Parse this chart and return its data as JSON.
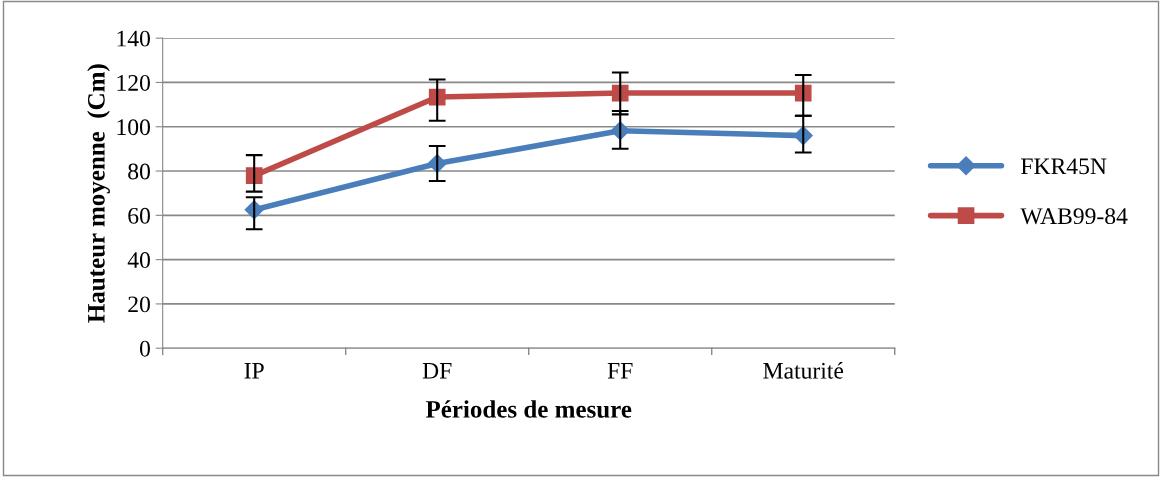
{
  "chart_data": {
    "type": "line",
    "xlabel": "Périodes de mesure",
    "ylabel": "Hauteur moyenne  (Cm)",
    "categories": [
      "IP",
      "DF",
      "FF",
      "Maturité"
    ],
    "series": [
      {
        "name": "FKR45N",
        "color": "#4a7ebb",
        "marker": "diamond",
        "values": [
          62.5,
          83.4,
          98.2,
          96
        ],
        "errors": [
          [
            53.7,
            68.2
          ],
          [
            75.5,
            91.3
          ],
          [
            90.1,
            107.1
          ],
          [
            88.4,
            105
          ]
        ]
      },
      {
        "name": "WAB99-84",
        "color": "#be4b48",
        "marker": "square",
        "values": [
          77.9,
          113.4,
          115.2,
          115.2
        ],
        "errors": [
          [
            70.7,
            87.2
          ],
          [
            102.7,
            121.3
          ],
          [
            105.6,
            124.5
          ],
          [
            105,
            123.4
          ]
        ]
      }
    ],
    "ylim": [
      0,
      140
    ],
    "yticks": [
      0,
      20,
      40,
      60,
      80,
      100,
      120,
      140
    ],
    "grid": "y",
    "legend": "right"
  }
}
